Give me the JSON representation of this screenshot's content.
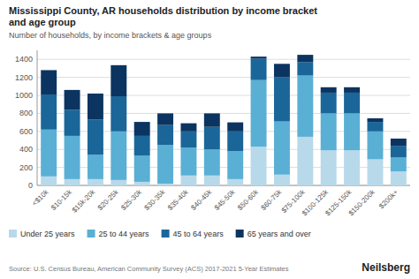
{
  "chart_data": {
    "type": "bar",
    "stacked": true,
    "title": "Mississippi County, AR households distribution by income bracket\nand age group",
    "subtitle": "Number of households, by income brackets & age groups",
    "annotations": [
      "Source: U.S. Census Bureau, American Community Survey (ACS) 2017-2021 5-Year Estimates",
      "Neilsberg"
    ],
    "categories": [
      "<$10k",
      "$10-15k",
      "$15k-20k",
      "$20-25k",
      "$25-30k",
      "$30-35k",
      "$35-40k",
      "$40-45k",
      "$45-50k",
      "$50-60k",
      "$60-75k",
      "$75-100k",
      "$100-125k",
      "$125-150k",
      "$150-200k",
      "$200k+"
    ],
    "series": [
      {
        "name": "Under 25 years",
        "color": "#b8d9ea",
        "values": [
          100,
          70,
          70,
          60,
          40,
          20,
          110,
          110,
          70,
          430,
          120,
          540,
          390,
          390,
          290,
          155
        ]
      },
      {
        "name": "25 to 44 years",
        "color": "#5aafd4",
        "values": [
          520,
          480,
          270,
          540,
          290,
          430,
          310,
          290,
          310,
          740,
          590,
          680,
          410,
          410,
          310,
          155
        ]
      },
      {
        "name": "45 to 64 years",
        "color": "#1a6699",
        "values": [
          390,
          290,
          390,
          390,
          220,
          220,
          180,
          250,
          220,
          240,
          490,
          150,
          230,
          230,
          105,
          130
        ]
      },
      {
        "name": "65 years and over",
        "color": "#0c3460",
        "values": [
          270,
          220,
          290,
          345,
          155,
          130,
          90,
          150,
          100,
          20,
          150,
          80,
          60,
          60,
          40,
          80
        ]
      }
    ],
    "ylim": [
      0,
      1500
    ],
    "yticks": [
      0,
      200,
      400,
      600,
      800,
      1000,
      1200,
      1400
    ],
    "grid": true,
    "legend": "bottom"
  }
}
